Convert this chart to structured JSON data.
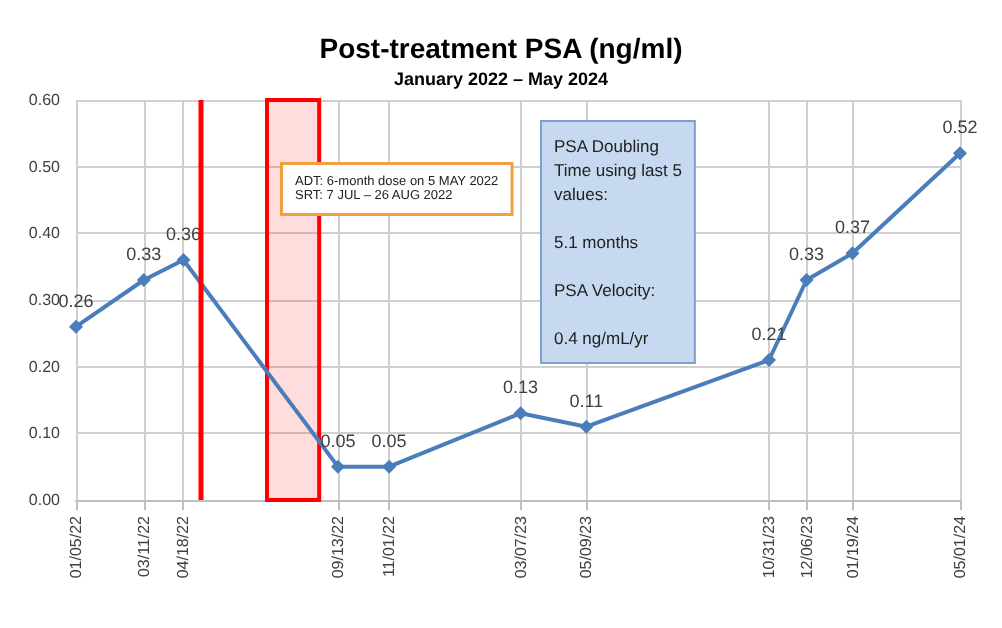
{
  "chart_data": {
    "type": "line",
    "title": "Post-treatment PSA (ng/ml)",
    "subtitle": "January 2022 – May 2024",
    "x": [
      "2022-01-05",
      "2022-03-11",
      "2022-04-18",
      "2022-09-13",
      "2022-11-01",
      "2023-03-07",
      "2023-05-09",
      "2023-10-31",
      "2023-12-06",
      "2024-01-19",
      "2024-05-01"
    ],
    "series": [
      {
        "color": "#4a7ebb",
        "values": [
          0.26,
          0.33,
          0.36,
          0.05,
          0.05,
          0.13,
          0.11,
          0.21,
          0.33,
          0.37,
          0.52
        ]
      }
    ],
    "xlim": [
      "2022-01-05",
      "2024-05-01"
    ],
    "xticks": [
      {
        "value": "2022-01-05",
        "label": "01/05/22"
      },
      {
        "value": "2022-03-11",
        "label": "03/11/22"
      },
      {
        "value": "2022-04-18",
        "label": "04/18/22"
      },
      {
        "value": "2022-09-13",
        "label": "09/13/22"
      },
      {
        "value": "2022-11-01",
        "label": "11/01/22"
      },
      {
        "value": "2023-03-07",
        "label": "03/07/23"
      },
      {
        "value": "2023-05-09",
        "label": "05/09/23"
      },
      {
        "value": "2023-10-31",
        "label": "10/31/23"
      },
      {
        "value": "2023-12-06",
        "label": "12/06/23"
      },
      {
        "value": "2024-01-19",
        "label": "01/19/24"
      },
      {
        "value": "2024-05-01",
        "label": "05/01/24"
      }
    ],
    "ylim": [
      0,
      0.6
    ],
    "yticks": [
      "0.00",
      "0.10",
      "0.20",
      "0.30",
      "0.40",
      "0.50",
      "0.60"
    ],
    "ref_lines": [
      {
        "axis": "x",
        "value": "2022-05-05",
        "label": null,
        "color": "#ff0000"
      }
    ],
    "bands": [
      {
        "axis": "x",
        "from": "2022-07-07",
        "to": "2022-08-26",
        "label": null,
        "color": "#ff0000"
      }
    ],
    "annotations": [
      "ADT: 6-month dose on 5 MAY 2022\nSRT: 7 JUL – 26 AUG 2022",
      "PSA Doubling\nTime using last 5\nvalues:\n\n5.1 months\n\nPSA Velocity:\n\n0.4 ng/mL/yr"
    ],
    "data_labels": true,
    "grid": true,
    "marker": "diamond",
    "line_style": "solid"
  }
}
